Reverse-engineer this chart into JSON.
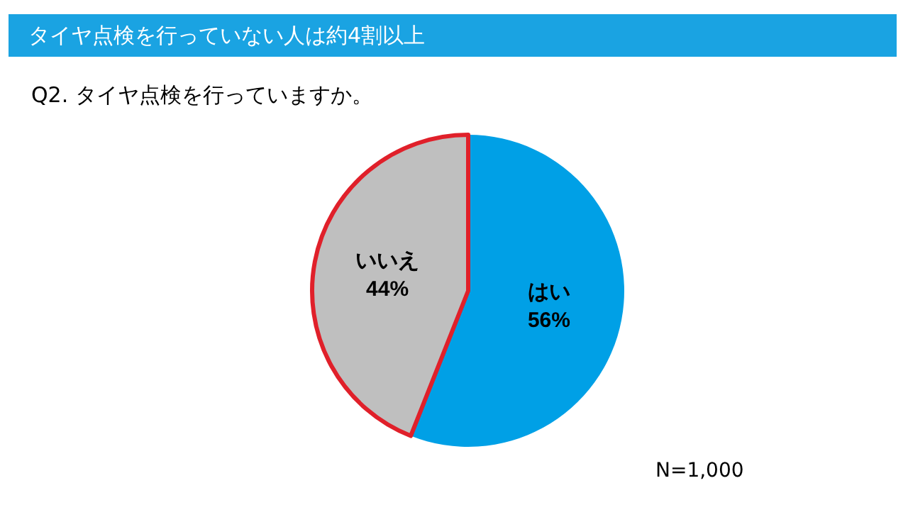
{
  "chart_data": {
    "type": "pie",
    "title": "タイヤ点検を行っていない人は約4割以上",
    "subtitle": "Q2. タイヤ点検を行っていますか。",
    "categories": [
      "はい",
      "いいえ"
    ],
    "values": [
      56,
      44
    ],
    "colors": [
      "#00a0e6",
      "#bfbfbf"
    ],
    "value_labels": [
      "56%",
      "44%"
    ],
    "annotations": [
      "N=1,000"
    ],
    "legend": false
  }
}
